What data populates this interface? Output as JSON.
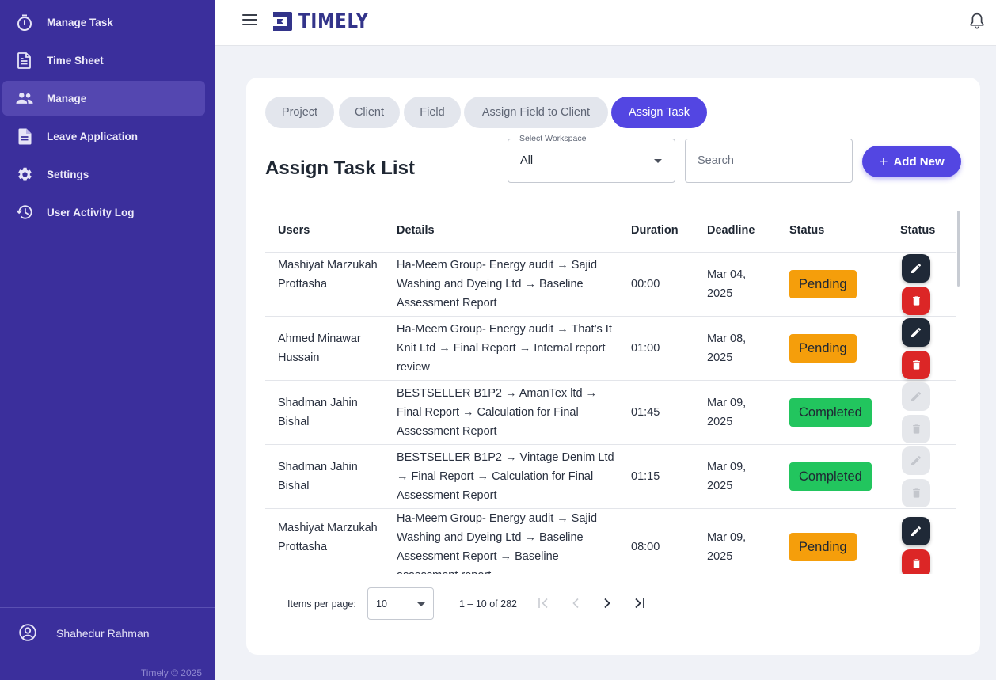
{
  "app": {
    "name": "TIMELY",
    "copyright": "Timely © 2025"
  },
  "sidebar": {
    "items": [
      {
        "label": "Manage Task",
        "icon": "timer-icon"
      },
      {
        "label": "Time Sheet",
        "icon": "document-icon"
      },
      {
        "label": "Manage",
        "icon": "people-icon",
        "active": true
      },
      {
        "label": "Leave Application",
        "icon": "file-icon"
      },
      {
        "label": "Settings",
        "icon": "gear-icon"
      },
      {
        "label": "User Activity Log",
        "icon": "history-icon"
      }
    ],
    "user_name": "Shahedur Rahman"
  },
  "tabs": [
    {
      "label": "Project"
    },
    {
      "label": "Client"
    },
    {
      "label": "Field"
    },
    {
      "label": "Assign Field to Client"
    },
    {
      "label": "Assign Task",
      "active": true
    }
  ],
  "list": {
    "title": "Assign Task List",
    "workspace_label": "Select Workspace",
    "workspace_value": "All",
    "search_placeholder": "Search",
    "add_label": "Add New"
  },
  "table": {
    "columns": [
      "Users",
      "Details",
      "Duration",
      "Deadline",
      "Status",
      "Status"
    ],
    "rows": [
      {
        "user": "Mashiyat Marzukah Prottasha",
        "details": "Ha-Meem Group- Energy audit → Sajid Washing and Dyeing Ltd → Baseline Assessment Report",
        "duration": "00:00",
        "deadline": "Mar 04, 2025",
        "status": "Pending",
        "actions_enabled": true
      },
      {
        "user": "Ahmed Minawar Hussain",
        "details": "Ha-Meem Group- Energy audit → That’s It Knit Ltd → Final Report → Internal report review",
        "duration": "01:00",
        "deadline": "Mar 08, 2025",
        "status": "Pending",
        "actions_enabled": true
      },
      {
        "user": "Shadman Jahin Bishal",
        "details": "BESTSELLER B1P2 → AmanTex ltd → Final Report → Calculation for Final Assessment Report",
        "duration": "01:45",
        "deadline": "Mar 09, 2025",
        "status": "Completed",
        "actions_enabled": false
      },
      {
        "user": "Shadman Jahin Bishal",
        "details": "BESTSELLER B1P2 → Vintage Denim Ltd → Final Report → Calculation for Final Assessment Report",
        "duration": "01:15",
        "deadline": "Mar 09, 2025",
        "status": "Completed",
        "actions_enabled": false
      },
      {
        "user": "Mashiyat Marzukah Prottasha",
        "details": "Ha-Meem Group- Energy audit → Sajid Washing and Dyeing Ltd → Baseline Assessment Report → Baseline assessment report",
        "duration": "08:00",
        "deadline": "Mar 09, 2025",
        "status": "Pending",
        "actions_enabled": true
      }
    ]
  },
  "pagination": {
    "items_per_page_label": "Items per page:",
    "items_per_page": "10",
    "range": "1 – 10 of 282"
  },
  "colors": {
    "sidebar": "#3b2f9c",
    "accent": "#5346e2",
    "pending": "#f59e0b",
    "completed": "#22c55e",
    "delete": "#dc2626"
  }
}
